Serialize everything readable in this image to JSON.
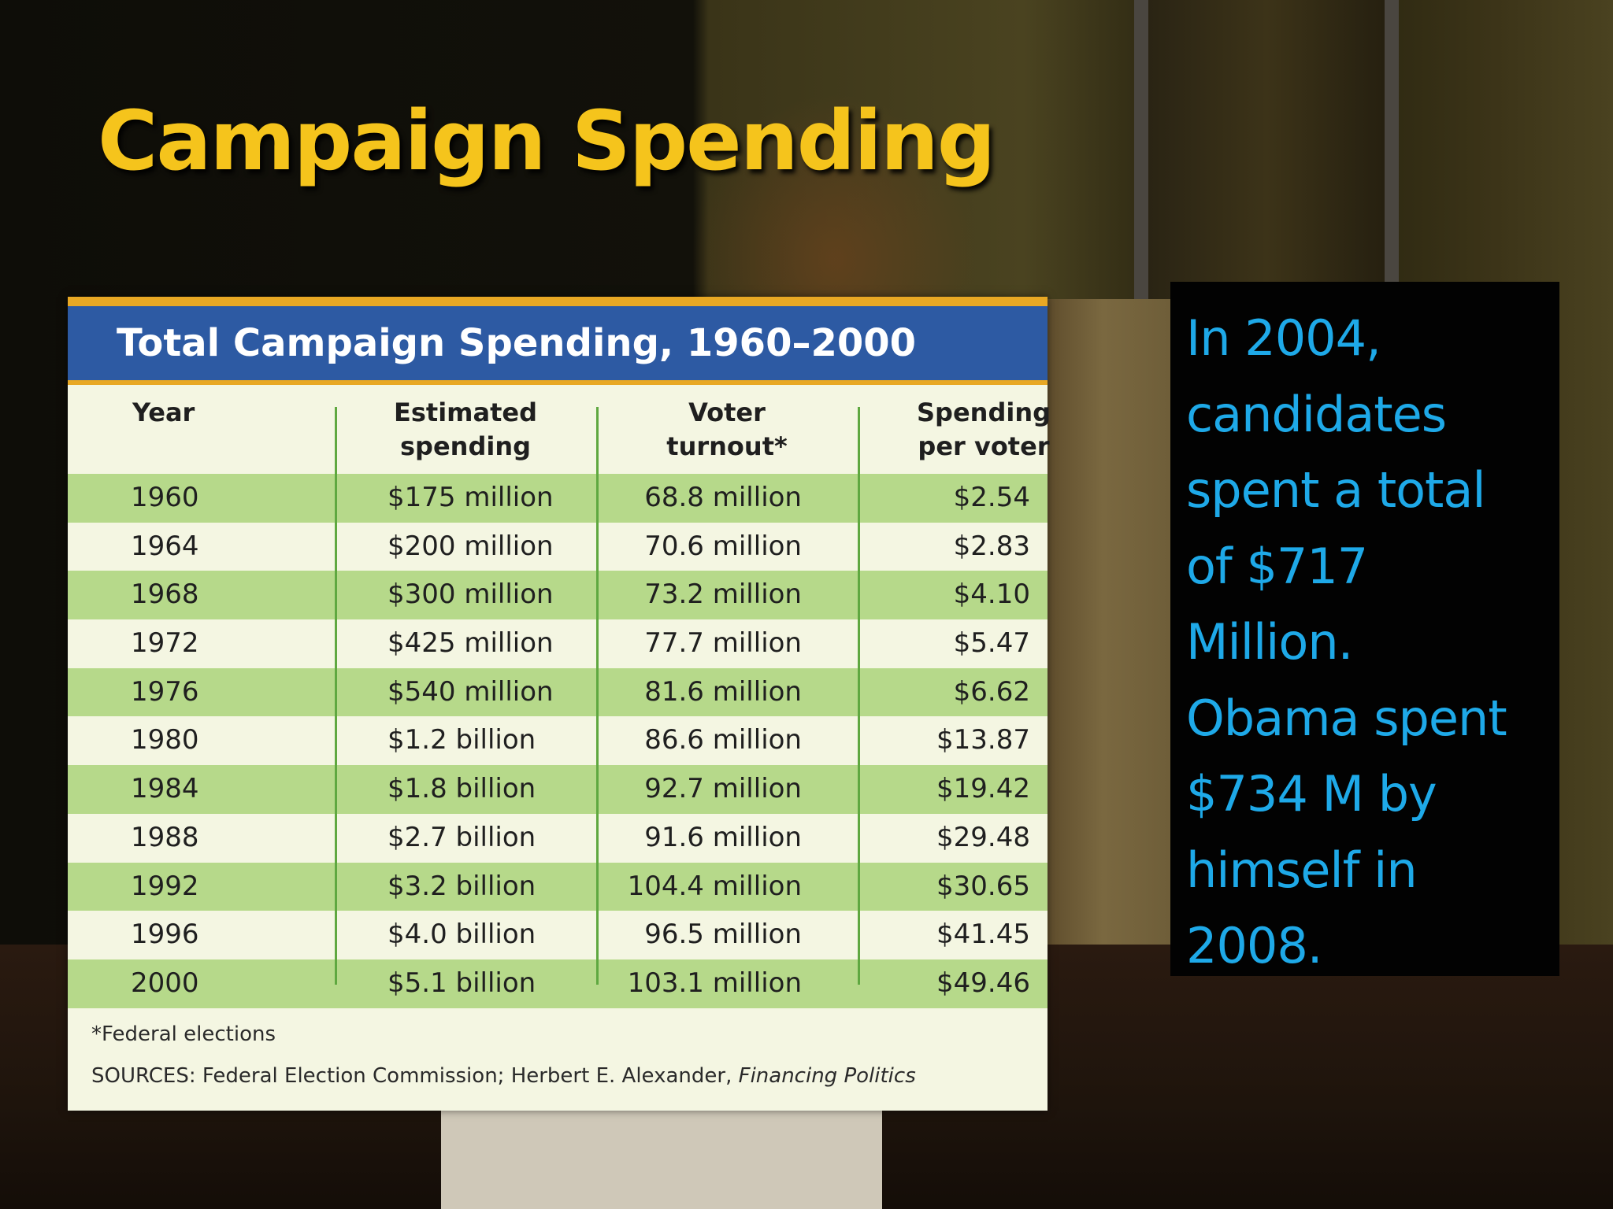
{
  "slide": {
    "title": "Campaign Spending"
  },
  "table": {
    "title": "Total Campaign Spending, 1960–2000",
    "headers": {
      "year": "Year",
      "spending_line1": "Estimated",
      "spending_line2": "spending",
      "turnout_line1": "Voter",
      "turnout_line2": "turnout*",
      "pervoter_line1": "Spending",
      "pervoter_line2": "per voter"
    },
    "rows": [
      {
        "year": "1960",
        "spending": "$175 million",
        "turnout": "68.8 million",
        "per_voter": "$2.54"
      },
      {
        "year": "1964",
        "spending": "$200 million",
        "turnout": "70.6 million",
        "per_voter": "$2.83"
      },
      {
        "year": "1968",
        "spending": "$300 million",
        "turnout": "73.2 million",
        "per_voter": "$4.10"
      },
      {
        "year": "1972",
        "spending": "$425 million",
        "turnout": "77.7 million",
        "per_voter": "$5.47"
      },
      {
        "year": "1976",
        "spending": "$540 million",
        "turnout": "81.6 million",
        "per_voter": "$6.62"
      },
      {
        "year": "1980",
        "spending": "$1.2 billion",
        "turnout": "86.6 million",
        "per_voter": "$13.87"
      },
      {
        "year": "1984",
        "spending": "$1.8 billion",
        "turnout": "92.7 million",
        "per_voter": "$19.42"
      },
      {
        "year": "1988",
        "spending": "$2.7 billion",
        "turnout": "91.6 million",
        "per_voter": "$29.48"
      },
      {
        "year": "1992",
        "spending": "$3.2 billion",
        "turnout": "104.4 million",
        "per_voter": "$30.65"
      },
      {
        "year": "1996",
        "spending": "$4.0 billion",
        "turnout": "96.5 million",
        "per_voter": "$41.45"
      },
      {
        "year": "2000",
        "spending": "$5.1 billion",
        "turnout": "103.1 million",
        "per_voter": "$49.46"
      }
    ],
    "footnote": "*Federal elections",
    "sources_prefix": "SOURCES: Federal Election Commission; Herbert E. Alexander, ",
    "sources_title": "Financing Politics"
  },
  "note": {
    "lines": [
      "In 2004,",
      "candidates",
      "spent a total",
      "of $717",
      "Million.",
      "Obama spent",
      "$734 M by",
      "himself in",
      "2008."
    ]
  },
  "colors": {
    "title": "#f5c41c",
    "table_header_bar": "#2d5aa3",
    "table_accent": "#e8a824",
    "row_green": "#b6d98a",
    "row_light": "#f4f6e2",
    "note_text": "#1ea9e8",
    "note_bg": "#020202"
  }
}
